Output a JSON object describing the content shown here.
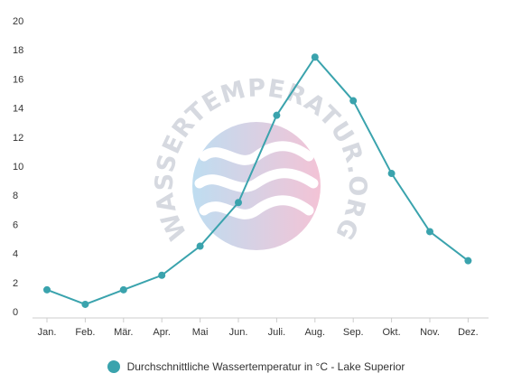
{
  "chart_data": {
    "type": "line",
    "categories": [
      "Jan.",
      "Feb.",
      "Mär.",
      "Apr.",
      "Mai",
      "Jun.",
      "Juli.",
      "Aug.",
      "Sep.",
      "Okt.",
      "Nov.",
      "Dez."
    ],
    "series": [
      {
        "name": "Durchschnittliche Wassertemperatur in °C - Lake Superior",
        "values": [
          1.5,
          0.5,
          1.5,
          2.5,
          4.5,
          7.5,
          13.5,
          17.5,
          14.5,
          9.5,
          5.5,
          3.5
        ]
      }
    ],
    "y_ticks": [
      "0",
      "2",
      "4",
      "6",
      "8",
      "10",
      "12",
      "14",
      "16",
      "18",
      "20"
    ],
    "ylim": [
      0,
      20
    ],
    "grid": false,
    "legend_position": "bottom",
    "line_color": "#3aa3ad"
  },
  "watermark": {
    "text": "WASSERTEMPERATUR.ORG",
    "gradient_from": "#a9d2ec",
    "gradient_to": "#efafc8"
  }
}
